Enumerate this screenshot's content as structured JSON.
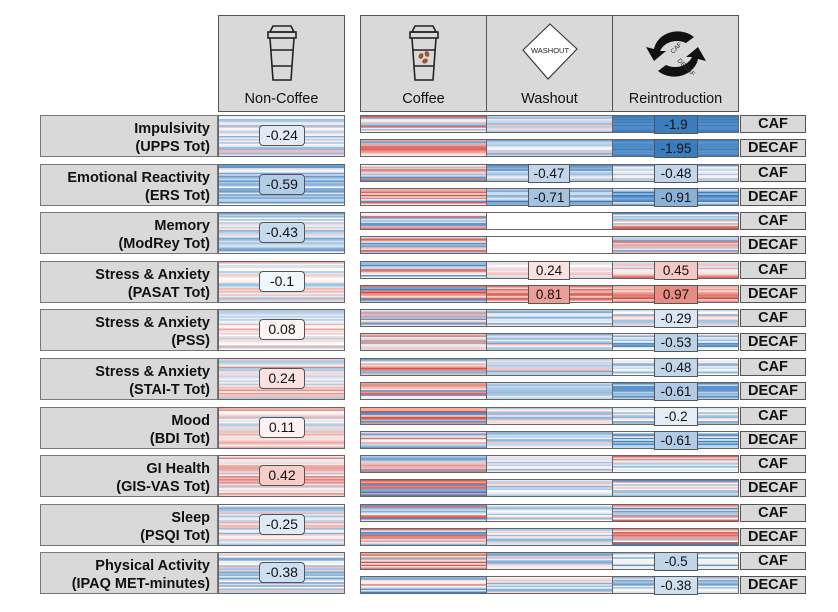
{
  "chart_data": {
    "type": "heatmap",
    "title": "",
    "columns": [
      "Non-Coffee",
      "Coffee",
      "Washout",
      "Reintroduction"
    ],
    "column_icons": [
      "coffee-cup-plain-icon",
      "coffee-cup-beans-icon",
      "washout-diamond-icon",
      "caf-decaf-cycle-icon"
    ],
    "washout_icon_text": "WASHOUT",
    "reintro_icon_text": [
      "CAF",
      "DECAF"
    ],
    "row_tags": [
      "CAF",
      "DECAF"
    ],
    "color_scale": {
      "negative": "#3a7dbf",
      "neutral": "#ffffff",
      "positive": "#d9483b"
    },
    "measures": [
      {
        "name": "Impulsivity",
        "instrument": "(UPPS Tot)",
        "noncoffee": -0.24,
        "washout": {
          "CAF": null,
          "DECAF": null
        },
        "reintroduction": {
          "CAF": -1.9,
          "DECAF": -1.95
        }
      },
      {
        "name": "Emotional Reactivity",
        "instrument": "(ERS Tot)",
        "noncoffee": -0.59,
        "washout": {
          "CAF": -0.47,
          "DECAF": -0.71
        },
        "reintroduction": {
          "CAF": -0.48,
          "DECAF": -0.91
        }
      },
      {
        "name": "Memory",
        "instrument": "(ModRey Tot)",
        "noncoffee": -0.43,
        "washout": {
          "CAF": null,
          "DECAF": null
        },
        "reintroduction": {
          "CAF": null,
          "DECAF": null
        }
      },
      {
        "name": "Stress & Anxiety",
        "instrument": "(PASAT Tot)",
        "noncoffee": -0.1,
        "washout": {
          "CAF": 0.24,
          "DECAF": 0.81
        },
        "reintroduction": {
          "CAF": 0.45,
          "DECAF": 0.97
        }
      },
      {
        "name": "Stress & Anxiety",
        "instrument": "(PSS)",
        "noncoffee": 0.08,
        "washout": {
          "CAF": null,
          "DECAF": null
        },
        "reintroduction": {
          "CAF": -0.29,
          "DECAF": -0.53
        }
      },
      {
        "name": "Stress & Anxiety",
        "instrument": "(STAI-T Tot)",
        "noncoffee": 0.24,
        "washout": {
          "CAF": null,
          "DECAF": null
        },
        "reintroduction": {
          "CAF": -0.48,
          "DECAF": -0.61
        }
      },
      {
        "name": "Mood",
        "instrument": "(BDI Tot)",
        "noncoffee": 0.11,
        "washout": {
          "CAF": null,
          "DECAF": null
        },
        "reintroduction": {
          "CAF": -0.2,
          "DECAF": -0.61
        }
      },
      {
        "name": "GI Health",
        "instrument": "(GIS-VAS Tot)",
        "noncoffee": 0.42,
        "washout": {
          "CAF": null,
          "DECAF": null
        },
        "reintroduction": {
          "CAF": null,
          "DECAF": null
        }
      },
      {
        "name": "Sleep",
        "instrument": "(PSQI Tot)",
        "noncoffee": -0.25,
        "washout": {
          "CAF": null,
          "DECAF": null
        },
        "reintroduction": {
          "CAF": null,
          "DECAF": null
        }
      },
      {
        "name": "Physical Activity",
        "instrument": "(IPAQ MET-minutes)",
        "noncoffee": -0.38,
        "washout": {
          "CAF": null,
          "DECAF": null
        },
        "reintroduction": {
          "CAF": -0.5,
          "DECAF": -0.38
        }
      }
    ],
    "washout_blank": [
      {
        "measure": 2,
        "tag": "CAF"
      },
      {
        "measure": 2,
        "tag": "DECAF"
      }
    ]
  }
}
